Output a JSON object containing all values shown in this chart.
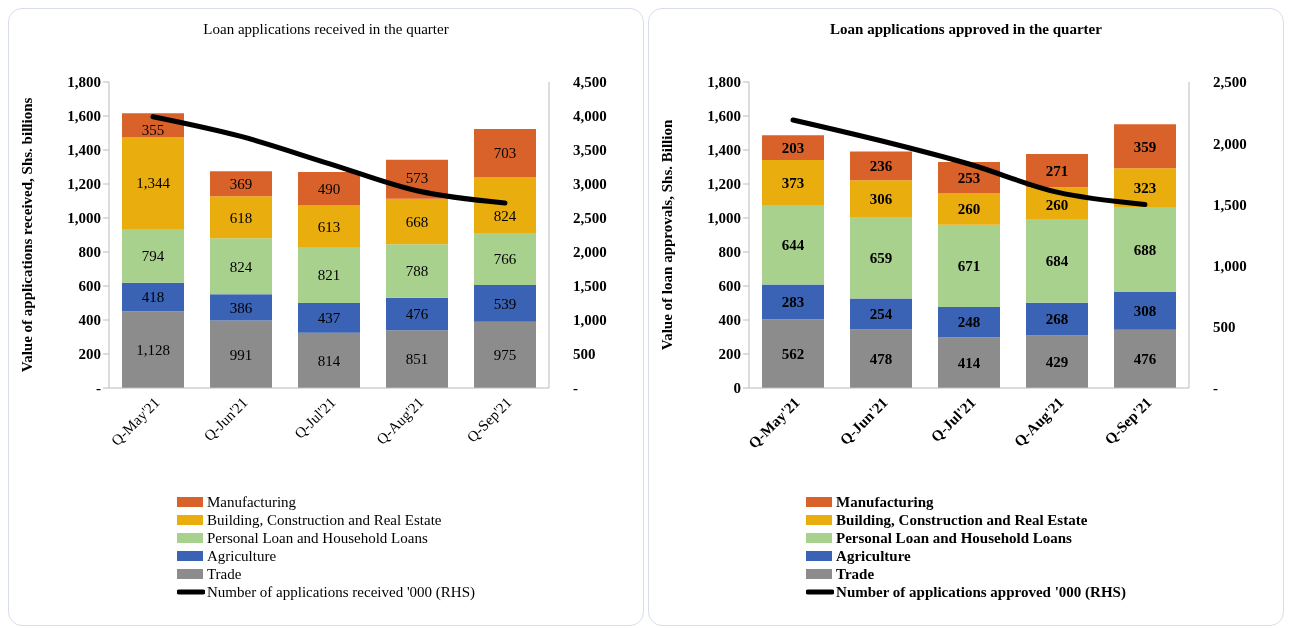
{
  "chart_data": [
    {
      "type": "bar",
      "stacked": true,
      "title": "Loan applications received in the quarter",
      "ylabel": "Value of  applications received, Shs. billions",
      "legend": "bottom",
      "categories": [
        "Q-May'21",
        "Q-Jun'21",
        "Q-Jul'21",
        "Q-Aug'21",
        "Q-Sep'21"
      ],
      "ylim": [
        0,
        1800
      ],
      "yticks": [
        {
          "value": 0,
          "label": "-"
        },
        200,
        400,
        600,
        800,
        {
          "value": 1000,
          "label": "1,000"
        },
        {
          "value": 1200,
          "label": "1,200"
        },
        {
          "value": 1400,
          "label": "1,400"
        },
        {
          "value": 1600,
          "label": "1,600"
        },
        {
          "value": 1800,
          "label": "1,800"
        }
      ],
      "y2lim": [
        0,
        4500
      ],
      "y2ticks": [
        {
          "value": 0,
          "label": "-"
        },
        500,
        {
          "value": 1000,
          "label": "1,000"
        },
        {
          "value": 1500,
          "label": "1,500"
        },
        {
          "value": 2000,
          "label": "2,000"
        },
        {
          "value": 2500,
          "label": "2,500"
        },
        {
          "value": 3000,
          "label": "3,000"
        },
        {
          "value": 3500,
          "label": "3,500"
        },
        {
          "value": 4000,
          "label": "4,000"
        },
        {
          "value": 4500,
          "label": "4,500"
        }
      ],
      "series": [
        {
          "name": "Trade",
          "axis": "y2",
          "color": "#8c8c8c",
          "values": [
            1128,
            991,
            814,
            851,
            975
          ],
          "value_labels": [
            "1,128",
            "991",
            "814",
            "851",
            "975"
          ]
        },
        {
          "name": "Agriculture",
          "axis": "y2",
          "color": "#3a62b5",
          "values": [
            418,
            386,
            437,
            476,
            539
          ],
          "value_labels": [
            "418",
            "386",
            "437",
            "476",
            "539"
          ]
        },
        {
          "name": "Personal Loan and Household Loans",
          "axis": "y2",
          "color": "#a9d18e",
          "values": [
            794,
            824,
            821,
            788,
            766
          ],
          "value_labels": [
            "794",
            "824",
            "821",
            "788",
            "766"
          ]
        },
        {
          "name": "Building, Construction and Real Estate",
          "axis": "y2",
          "color": "#eaad0e",
          "values": [
            1344,
            618,
            613,
            668,
            824
          ],
          "value_labels": [
            "1,344",
            "618",
            "613",
            "668",
            "824"
          ]
        },
        {
          "name": "Manufacturing",
          "axis": "y2",
          "color": "#d9622b",
          "values": [
            355,
            369,
            490,
            573,
            703
          ],
          "value_labels": [
            "355",
            "369",
            "490",
            "573",
            "703"
          ]
        },
        {
          "name": "Number of applications received '000 (RHS)",
          "type": "line",
          "axis": "y2",
          "color": "#000000",
          "values": [
            3990,
            3700,
            3300,
            2900,
            2720
          ]
        }
      ]
    },
    {
      "type": "bar",
      "stacked": true,
      "title": "Loan applications approved in the quarter",
      "ylabel": "Value of loan approvals, Shs. Billion",
      "legend": "bottom",
      "categories": [
        "Q-May'21",
        "Q-Jun'21",
        "Q-Jul'21",
        "Q-Aug'21",
        "Q-Sep'21"
      ],
      "ylim": [
        0,
        1800
      ],
      "yticks": [
        0,
        200,
        400,
        600,
        800,
        {
          "value": 1000,
          "label": "1,000"
        },
        {
          "value": 1200,
          "label": "1,200"
        },
        {
          "value": 1400,
          "label": "1,400"
        },
        {
          "value": 1600,
          "label": "1,600"
        },
        {
          "value": 1800,
          "label": "1,800"
        }
      ],
      "y2lim": [
        0,
        2500
      ],
      "y2ticks": [
        {
          "value": 0,
          "label": "-"
        },
        500,
        {
          "value": 1000,
          "label": "1,000"
        },
        {
          "value": 1500,
          "label": "1,500"
        },
        {
          "value": 2000,
          "label": "2,000"
        },
        {
          "value": 2500,
          "label": "2,500"
        }
      ],
      "series": [
        {
          "name": "Trade",
          "axis": "y2",
          "color": "#8c8c8c",
          "values": [
            562,
            478,
            414,
            429,
            476
          ],
          "value_labels": [
            "562",
            "478",
            "414",
            "429",
            "476"
          ]
        },
        {
          "name": "Agriculture",
          "axis": "y2",
          "color": "#3a62b5",
          "values": [
            283,
            254,
            248,
            268,
            308
          ],
          "value_labels": [
            "283",
            "254",
            "248",
            "268",
            "308"
          ]
        },
        {
          "name": "Personal Loan and Household Loans",
          "axis": "y2",
          "color": "#a9d18e",
          "values": [
            644,
            659,
            671,
            684,
            688
          ],
          "value_labels": [
            "644",
            "659",
            "671",
            "684",
            "688"
          ]
        },
        {
          "name": "Building, Construction and Real Estate",
          "axis": "y2",
          "color": "#eaad0e",
          "values": [
            373,
            306,
            260,
            260,
            323
          ],
          "value_labels": [
            "373",
            "306",
            "260",
            "260",
            "323"
          ]
        },
        {
          "name": "Manufacturing",
          "axis": "y2",
          "color": "#d9622b",
          "values": [
            203,
            236,
            253,
            271,
            359
          ],
          "value_labels": [
            "203",
            "236",
            "253",
            "271",
            "359"
          ]
        },
        {
          "name": "Number of applications approved '000 (RHS)",
          "type": "line",
          "axis": "y2",
          "color": "#000000",
          "values": [
            2190,
            2020,
            1830,
            1600,
            1500
          ]
        }
      ]
    }
  ]
}
